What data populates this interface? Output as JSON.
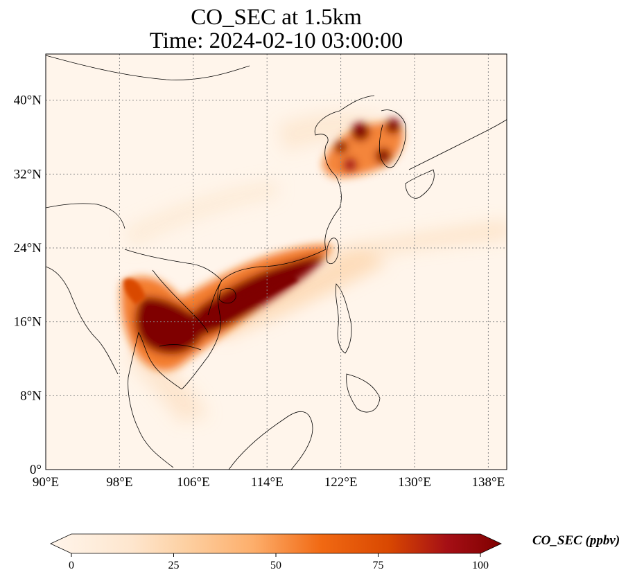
{
  "title_line1": "CO_SEC at 1.5km",
  "title_line2": "Time: 2024-02-10 03:00:00",
  "map": {
    "projection": "PlateCarree",
    "lon_range": [
      90,
      140
    ],
    "lat_range": [
      0,
      45
    ],
    "lon_ticks": [
      {
        "value": 90,
        "label": "90°E"
      },
      {
        "value": 98,
        "label": "98°E"
      },
      {
        "value": 106,
        "label": "106°E"
      },
      {
        "value": 114,
        "label": "114°E"
      },
      {
        "value": 122,
        "label": "122°E"
      },
      {
        "value": 130,
        "label": "130°E"
      },
      {
        "value": 138,
        "label": "138°E"
      }
    ],
    "lat_ticks": [
      {
        "value": 0,
        "label": "0°"
      },
      {
        "value": 8,
        "label": "8°N"
      },
      {
        "value": 16,
        "label": "16°N"
      },
      {
        "value": 24,
        "label": "24°N"
      },
      {
        "value": 32,
        "label": "32°N"
      },
      {
        "value": 40,
        "label": "40°N"
      }
    ],
    "grid": "dotted",
    "field_colors": {
      "background": "#fff5eb",
      "low": "#fdd9b4",
      "mid": "#f16913",
      "high": "#7f0000"
    },
    "plumes": [
      {
        "name": "indochina",
        "lon": 103.5,
        "lat": 14.5,
        "value": 100
      },
      {
        "name": "south-china-sea-band",
        "lon": 112.5,
        "lat": 19.0,
        "value": 100
      },
      {
        "name": "korea-shandong",
        "lon": 125.0,
        "lat": 35.5,
        "value": 100
      }
    ]
  },
  "colorbar": {
    "label": "CO_SEC (ppbv)",
    "min": 0,
    "max": 100,
    "ticks": [
      "0",
      "25",
      "50",
      "75",
      "100"
    ],
    "colors": [
      "#fff5eb",
      "#fdd9b4",
      "#fdae6b",
      "#f16913",
      "#d94801",
      "#a50f15",
      "#7f0000"
    ]
  }
}
